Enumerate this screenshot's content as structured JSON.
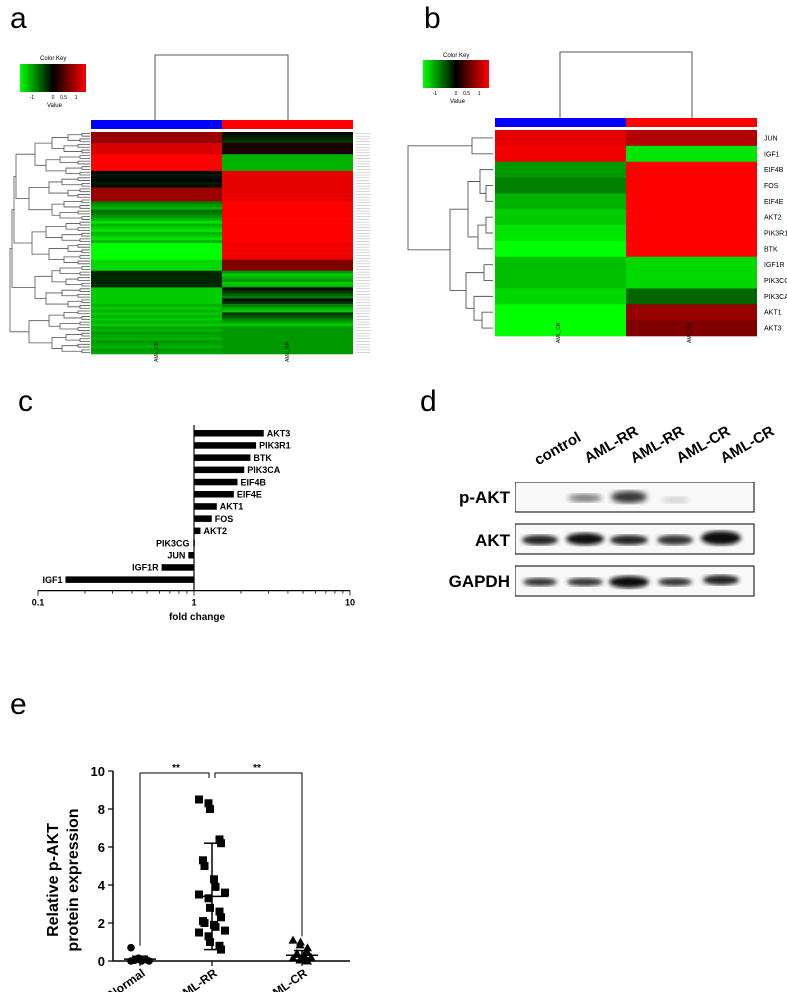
{
  "panels": {
    "a": "a",
    "b": "b",
    "c": "c",
    "d": "d",
    "e": "e"
  },
  "colors": {
    "low": "#00ff00",
    "mid": "#000000",
    "high": "#ff0000",
    "cr_bar": "#0000ff",
    "rr_bar": "#ff0000"
  },
  "heatmap_a": {
    "key_title": "Color Key",
    "key_label": "Value",
    "key_ticks": [
      "-1",
      "0",
      "0.5",
      "1"
    ],
    "columns": [
      "AML_CR",
      "AML_RR"
    ]
  },
  "heatmap_b": {
    "key_title": "Color Key",
    "key_label": "Value",
    "key_ticks": [
      "-1",
      "0",
      "0.5",
      "1"
    ],
    "columns": [
      "AML_CR",
      "AML_RR"
    ],
    "rows": [
      "JUN",
      "IGF1",
      "EIF4B",
      "FOS",
      "EIF4E",
      "AKT2",
      "PIK3R1",
      "BTK",
      "IGF1R",
      "PIK3CG",
      "PIK3CA",
      "AKT1",
      "AKT3"
    ],
    "cr_values": [
      0.9,
      0.95,
      -0.6,
      -0.5,
      -0.7,
      -0.8,
      -0.9,
      -1.0,
      -0.75,
      -0.75,
      -0.85,
      -1.0,
      -1.0
    ],
    "rr_values": [
      0.7,
      -0.9,
      1.0,
      1.0,
      1.0,
      1.0,
      1.0,
      1.0,
      -0.85,
      -0.85,
      -0.4,
      0.6,
      0.5
    ]
  },
  "chart_data": [
    {
      "type": "bar",
      "panel": "c",
      "orientation": "horizontal",
      "xscale": "log",
      "xlim": [
        0.1,
        10
      ],
      "xticks": [
        "0.1",
        "1",
        "10"
      ],
      "xlabel": "fold change",
      "categories": [
        "AKT3",
        "PIK3R1",
        "BTK",
        "PIK3CA",
        "EIF4B",
        "EIF4E",
        "AKT1",
        "FOS",
        "AKT2",
        "PIK3CG",
        "JUN",
        "IGF1R",
        "IGF1"
      ],
      "values": [
        2.8,
        2.5,
        2.3,
        2.1,
        1.9,
        1.8,
        1.4,
        1.3,
        1.1,
        0.99,
        0.92,
        0.62,
        0.15
      ]
    },
    {
      "type": "scatter",
      "panel": "e",
      "ylabel_line1": "Relative  p-AKT",
      "ylabel_line2": "protein expression",
      "ylim": [
        0,
        10
      ],
      "yticks": [
        "0",
        "2",
        "4",
        "6",
        "8",
        "10"
      ],
      "categories": [
        "Normal",
        "AML-RR",
        "AML-CR"
      ],
      "significance": [
        "**",
        "**"
      ],
      "groups": [
        {
          "name": "Normal",
          "marker": "circle",
          "mean": 0.1,
          "sd": 0.15,
          "values": [
            0.7,
            0.15,
            0.12,
            0.1,
            0.08,
            0.05,
            0.05,
            0.02,
            0.0,
            0.0,
            0.0
          ]
        },
        {
          "name": "AML-RR",
          "marker": "square",
          "mean": 3.4,
          "sd": 2.8,
          "values": [
            8.5,
            8.3,
            8.0,
            6.4,
            6.2,
            5.3,
            5.0,
            4.3,
            3.9,
            3.6,
            3.5,
            3.3,
            2.8,
            2.6,
            2.3,
            2.1,
            2.0,
            1.9,
            1.8,
            1.6,
            1.5,
            1.3,
            1.0,
            0.8,
            0.6
          ]
        },
        {
          "name": "AML-CR",
          "marker": "triangle",
          "mean": 0.3,
          "sd": 0.25,
          "values": [
            1.1,
            1.0,
            0.85,
            0.7,
            0.5,
            0.4,
            0.35,
            0.3,
            0.25,
            0.2,
            0.15,
            0.1,
            0.05,
            0.0,
            0.0
          ]
        }
      ]
    }
  ],
  "western_blot": {
    "lanes": [
      "control",
      "AML-RR",
      "AML-RR",
      "AML-CR",
      "AML-CR"
    ],
    "rows": [
      "p-AKT",
      "AKT",
      "GAPDH"
    ]
  }
}
